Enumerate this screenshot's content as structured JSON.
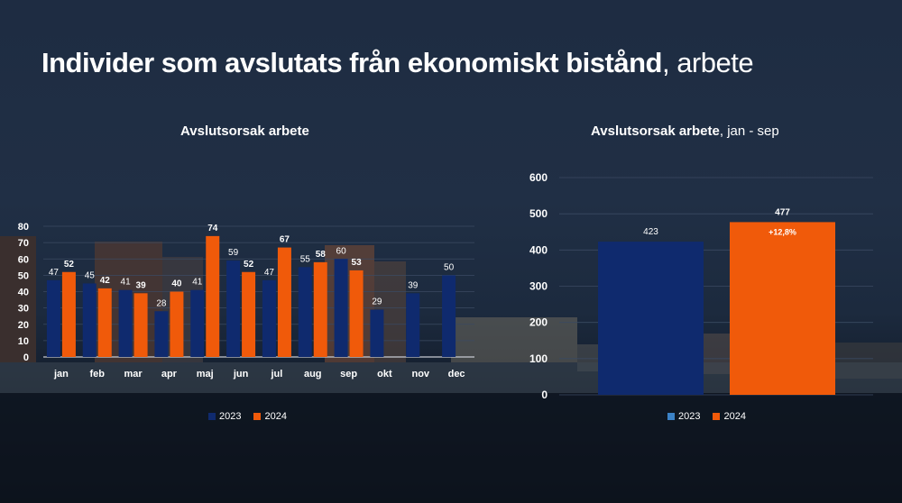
{
  "title": {
    "bold": "Individer som avslutats från ekonomiskt bistånd",
    "rest": ", arbete"
  },
  "colors": {
    "c2023_left": "#0f2a6e",
    "c2024": "#f05a0a",
    "c2023_right": "#0f2a6e",
    "legend_2023_left": "#0f2a6e",
    "legend_2023_right": "#3b82c6"
  },
  "chart_data": [
    {
      "type": "bar",
      "title": "Avslutsorsak arbete",
      "subtitle": "",
      "categories": [
        "jan",
        "feb",
        "mar",
        "apr",
        "maj",
        "jun",
        "jul",
        "aug",
        "sep",
        "okt",
        "nov",
        "dec"
      ],
      "series": [
        {
          "name": "2023",
          "values": [
            47,
            45,
            41,
            28,
            41,
            59,
            47,
            55,
            60,
            29,
            39,
            50
          ]
        },
        {
          "name": "2024",
          "values": [
            52,
            42,
            39,
            40,
            74,
            52,
            67,
            58,
            53,
            null,
            null,
            null
          ]
        }
      ],
      "ylim": [
        0,
        80
      ],
      "yticks": [
        "0",
        "10",
        "20",
        "30",
        "40",
        "50",
        "60",
        "70",
        "80"
      ],
      "grid": true,
      "legend": "bottom"
    },
    {
      "type": "bar",
      "title": "Avslutsorsak arbete",
      "subtitle": ", jan - sep",
      "categories": [
        "2023",
        "2024"
      ],
      "values": [
        423,
        477
      ],
      "value_labels": [
        "423",
        "477"
      ],
      "annotation": "+12,8%",
      "ylim": [
        0,
        600
      ],
      "yticks": [
        "0",
        "100",
        "200",
        "300",
        "400",
        "500",
        "600"
      ],
      "grid": true,
      "legend": "bottom",
      "series_names": [
        "2023",
        "2024"
      ]
    }
  ]
}
